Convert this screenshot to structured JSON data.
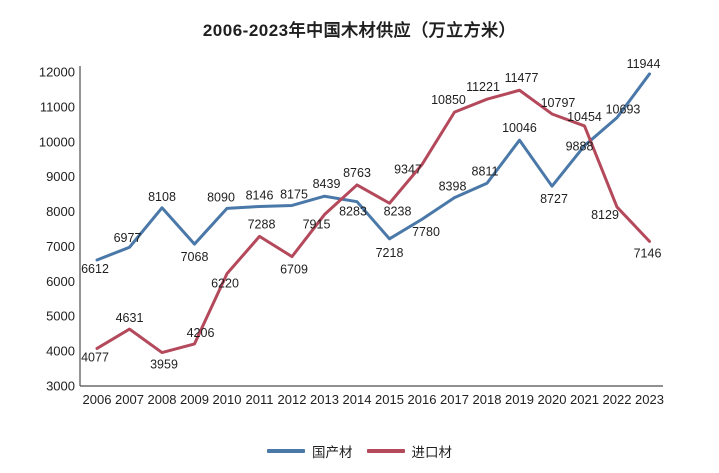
{
  "chart_data": {
    "type": "line",
    "title": "2006-2023年中国木材供应（万立方米）",
    "x": [
      "2006",
      "2007",
      "2008",
      "2009",
      "2010",
      "2011",
      "2012",
      "2013",
      "2014",
      "2015",
      "2016",
      "2017",
      "2018",
      "2019",
      "2020",
      "2021",
      "2022",
      "2023"
    ],
    "series": [
      {
        "name": "国产材",
        "color": "#4a78a8",
        "values": [
          6612,
          6977,
          8108,
          7068,
          8090,
          8146,
          8175,
          8439,
          8283,
          7218,
          7780,
          8398,
          8811,
          10046,
          8727,
          9888,
          10693,
          11944
        ]
      },
      {
        "name": "进口材",
        "color": "#b4495c",
        "values": [
          4077,
          4631,
          3959,
          4206,
          6220,
          7288,
          6709,
          7915,
          8763,
          8238,
          9347,
          10850,
          11221,
          11477,
          10797,
          10454,
          8129,
          7146
        ]
      }
    ],
    "ylim": [
      3000,
      12000
    ],
    "ytick_step": 1000,
    "yticks": [
      3000,
      4000,
      5000,
      6000,
      7000,
      8000,
      9000,
      10000,
      11000,
      12000
    ],
    "grid": false,
    "point_labels": true,
    "legend_position": "bottom",
    "axis_color": "#4d4d4d",
    "text_color": "#1f1f1f",
    "xlabel": "",
    "ylabel": ""
  }
}
